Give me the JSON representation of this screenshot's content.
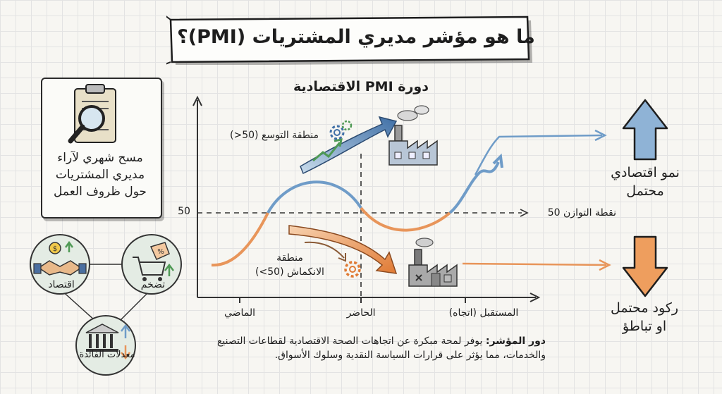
{
  "title": "ما هو مؤشر مديري المشتريات (PMI)؟",
  "chart_title": "دورة PMI الاقتصادية",
  "survey_card": {
    "text_line1": "مسح شهري لآراء",
    "text_line2": "مديري المشتريات",
    "text_line3": "حول ظروف العمل",
    "icon": "clipboard-magnifier-icon"
  },
  "factors": {
    "economy": "اقتصاد",
    "inflation": "تضخم",
    "interest_rates": "معدلات الفائدة",
    "icons": [
      "handshake-coins-icon",
      "shopping-cart-tag-icon",
      "bank-arrows-icon"
    ]
  },
  "axis": {
    "y_tick": "50",
    "x_past": "الماضي",
    "x_present": "الحاضر",
    "x_future": "المستقبل (اتجاه)"
  },
  "zones": {
    "expansion": "منطقة التوسع (50<)",
    "contraction_line1": "منطقة",
    "contraction_line2": "الانكماش (50>)",
    "equilibrium": "نقطة التوازن 50"
  },
  "outcomes": {
    "growth_line1": "نمو اقتصادي",
    "growth_line2": "محتمل",
    "recession_line1": "ركود محتمل",
    "recession_line2": "او تباطؤ"
  },
  "footer": {
    "label": "دور المؤشر:",
    "text": " يوفر لمحة مبكرة عن اتجاهات الصحة الاقتصادية لقطاعات التصنيع والخدمات، مما يؤثر على قرارات السياسة النقدية وسلوك الأسواق."
  },
  "colors": {
    "growth_blue": "#6f9cc8",
    "contraction_orange": "#e8955a",
    "up_arrow": "#8fb3d6",
    "down_arrow": "#ee9e5e",
    "green": "#4f9a55"
  }
}
